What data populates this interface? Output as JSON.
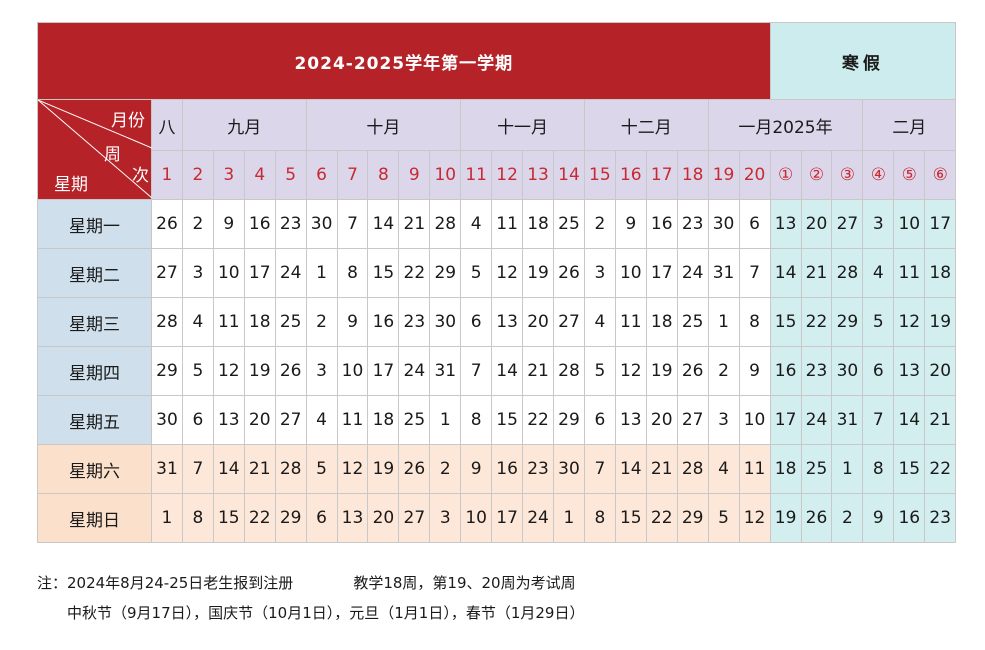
{
  "title": "2024-2025学年第一学期",
  "vacation_label": "寒假",
  "corner": {
    "month": "月份",
    "week": "周",
    "order": "次",
    "weekday": "星期"
  },
  "months": [
    {
      "label": "八",
      "span": 1
    },
    {
      "label": "九月",
      "span": 4
    },
    {
      "label": "十月",
      "span": 5
    },
    {
      "label": "十一月",
      "span": 4
    },
    {
      "label": "十二月",
      "span": 4
    },
    {
      "label": "一月2025年",
      "span": 5
    },
    {
      "label": "二月",
      "span": 3
    }
  ],
  "weeks": [
    "1",
    "2",
    "3",
    "4",
    "5",
    "6",
    "7",
    "8",
    "9",
    "10",
    "11",
    "12",
    "13",
    "14",
    "15",
    "16",
    "17",
    "18",
    "19",
    "20",
    "①",
    "②",
    "③",
    "④",
    "⑤",
    "⑥"
  ],
  "vacation_start_index": 20,
  "rows": [
    {
      "day": "星期一",
      "type": "weekday",
      "dates": [
        26,
        2,
        9,
        16,
        23,
        30,
        7,
        14,
        21,
        28,
        4,
        11,
        18,
        25,
        2,
        9,
        16,
        23,
        30,
        6,
        13,
        20,
        27,
        3,
        10,
        17
      ]
    },
    {
      "day": "星期二",
      "type": "weekday",
      "dates": [
        27,
        3,
        10,
        17,
        24,
        1,
        8,
        15,
        22,
        29,
        5,
        12,
        19,
        26,
        3,
        10,
        17,
        24,
        31,
        7,
        14,
        21,
        28,
        4,
        11,
        18
      ]
    },
    {
      "day": "星期三",
      "type": "weekday",
      "dates": [
        28,
        4,
        11,
        18,
        25,
        2,
        9,
        16,
        23,
        30,
        6,
        13,
        20,
        27,
        4,
        11,
        18,
        25,
        1,
        8,
        15,
        22,
        29,
        5,
        12,
        19
      ]
    },
    {
      "day": "星期四",
      "type": "weekday",
      "dates": [
        29,
        5,
        12,
        19,
        26,
        3,
        10,
        17,
        24,
        31,
        7,
        14,
        21,
        28,
        5,
        12,
        19,
        26,
        2,
        9,
        16,
        23,
        30,
        6,
        13,
        20
      ]
    },
    {
      "day": "星期五",
      "type": "weekday",
      "dates": [
        30,
        6,
        13,
        20,
        27,
        4,
        11,
        18,
        25,
        1,
        8,
        15,
        22,
        29,
        6,
        13,
        20,
        27,
        3,
        10,
        17,
        24,
        31,
        7,
        14,
        21
      ]
    },
    {
      "day": "星期六",
      "type": "weekend",
      "dates": [
        31,
        7,
        14,
        21,
        28,
        5,
        12,
        19,
        26,
        2,
        9,
        16,
        23,
        30,
        7,
        14,
        21,
        28,
        4,
        11,
        18,
        25,
        1,
        8,
        15,
        22
      ]
    },
    {
      "day": "星期日",
      "type": "weekend",
      "dates": [
        1,
        8,
        15,
        22,
        29,
        6,
        13,
        20,
        27,
        3,
        10,
        17,
        24,
        1,
        8,
        15,
        22,
        29,
        5,
        12,
        19,
        26,
        2,
        9,
        16,
        23
      ]
    }
  ],
  "notes": {
    "line1_a": "注：2024年8月24-25日老生报到注册",
    "line1_b": "教学18周，第19、20周为考试周",
    "line2": "中秋节（9月17日），国庆节（10月1日），元旦（1月1日），春节（1月29日）"
  },
  "colors": {
    "title_bg": "#b52329",
    "vacation_bg": "#cdeced",
    "header_bg": "#dcd6eb",
    "week_number": "#c72a30",
    "weekday_bg": "#cfe0ec",
    "weekend_bg": "#fde7d9"
  }
}
